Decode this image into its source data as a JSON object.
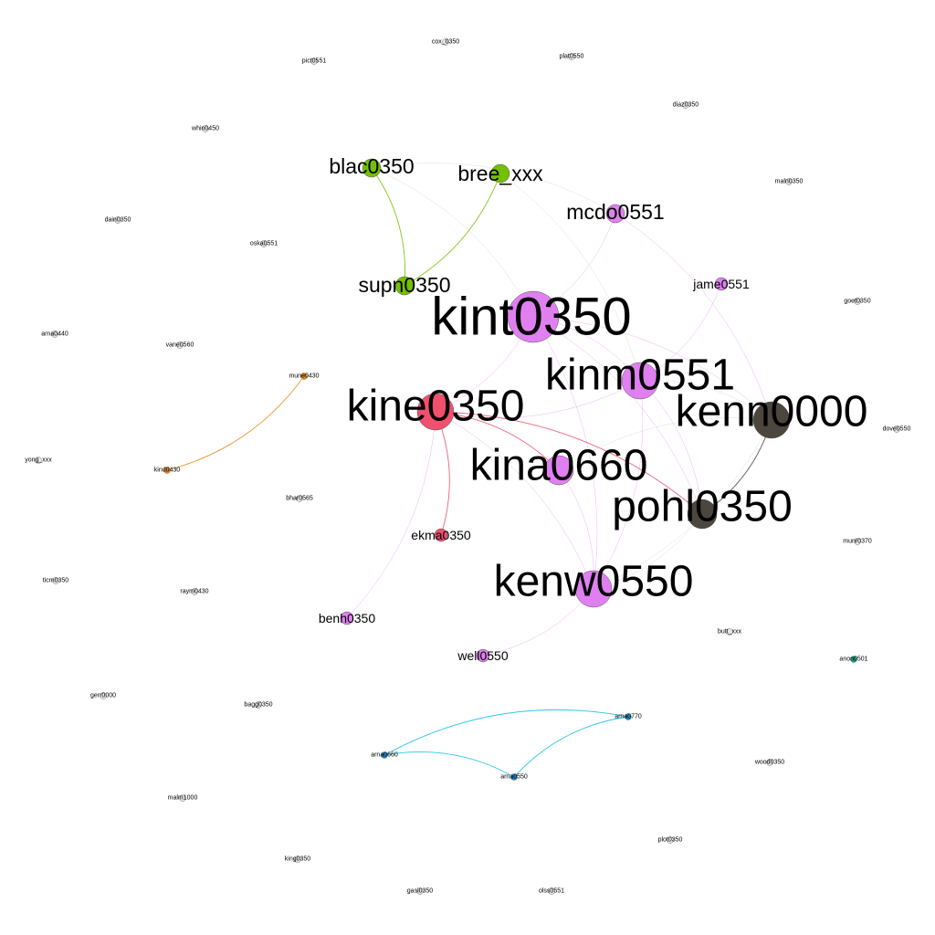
{
  "colors": {
    "pink": "#E080F0",
    "red": "#F0506E",
    "green": "#73C000",
    "dark": "#4B463E",
    "orange": "#E88A1A",
    "cyan": "#1AC0E8",
    "blue": "#1E88C8",
    "teal": "#10A080",
    "gray": "#E6E6E6",
    "edge_gray": "#C8C8C8"
  },
  "nodes": [
    {
      "id": "kint0350",
      "label": "kint0350",
      "color": "pink",
      "size": "xl"
    },
    {
      "id": "kinm0551",
      "label": "kinm0551",
      "color": "pink",
      "size": "l"
    },
    {
      "id": "kenn0000",
      "label": "kenn0000",
      "color": "dark",
      "size": "l"
    },
    {
      "id": "kine0350",
      "label": "kine0350",
      "color": "red",
      "size": "l"
    },
    {
      "id": "kina0660",
      "label": "kina0660",
      "color": "pink",
      "size": "m"
    },
    {
      "id": "pohl0350",
      "label": "pohl0350",
      "color": "dark",
      "size": "m"
    },
    {
      "id": "kenw0550",
      "label": "kenw0550",
      "color": "pink",
      "size": "l"
    },
    {
      "id": "mcdo0551",
      "label": "mcdo0551",
      "color": "pink",
      "size": "s"
    },
    {
      "id": "blac0350",
      "label": "blac0350",
      "color": "green",
      "size": "s"
    },
    {
      "id": "bree_xxx",
      "label": "bree_xxx",
      "color": "green",
      "size": "s"
    },
    {
      "id": "supn0350",
      "label": "supn0350",
      "color": "green",
      "size": "s"
    },
    {
      "id": "jame0551",
      "label": "jame0551",
      "color": "pink",
      "size": "xs"
    },
    {
      "id": "ekma0350",
      "label": "ekma0350",
      "color": "red",
      "size": "xs"
    },
    {
      "id": "benh0350",
      "label": "benh0350",
      "color": "pink",
      "size": "xs"
    },
    {
      "id": "well0550",
      "label": "well0550",
      "color": "pink",
      "size": "xs"
    },
    {
      "id": "mune0430",
      "label": "mune0430",
      "color": "orange",
      "size": "xxs"
    },
    {
      "id": "kind0430",
      "label": "kind0430",
      "color": "orange",
      "size": "xxs"
    },
    {
      "id": "arna0770",
      "label": "arna0770",
      "color": "blue",
      "size": "xxs"
    },
    {
      "id": "arna0660",
      "label": "arna0660",
      "color": "blue",
      "size": "xxs"
    },
    {
      "id": "arna0550",
      "label": "arna0550",
      "color": "blue",
      "size": "xxs"
    },
    {
      "id": "anon0501",
      "label": "anon0501",
      "color": "teal",
      "size": "xxs"
    },
    {
      "id": "cox_0350",
      "label": "cox_0350",
      "color": "gray",
      "size": "xxs"
    },
    {
      "id": "plat0550",
      "label": "plat0550",
      "color": "gray",
      "size": "xxs"
    },
    {
      "id": "pict0551",
      "label": "pict0551",
      "color": "gray",
      "size": "xxs"
    },
    {
      "id": "diaz0350",
      "label": "diaz0350",
      "color": "gray",
      "size": "xxs"
    },
    {
      "id": "whin0450",
      "label": "whin0450",
      "color": "gray",
      "size": "xxs"
    },
    {
      "id": "maln0350",
      "label": "maln0350",
      "color": "gray",
      "size": "xxs"
    },
    {
      "id": "dain0350",
      "label": "dain0350",
      "color": "gray",
      "size": "xxs"
    },
    {
      "id": "oska0551",
      "label": "oska0551",
      "color": "gray",
      "size": "xxs"
    },
    {
      "id": "goet0350",
      "label": "goet0350",
      "color": "gray",
      "size": "xxs"
    },
    {
      "id": "arna0440",
      "label": "arna0440",
      "color": "gray",
      "size": "xxs"
    },
    {
      "id": "vane0560",
      "label": "vane0560",
      "color": "gray",
      "size": "xxs"
    },
    {
      "id": "dove0550",
      "label": "dove0550",
      "color": "gray",
      "size": "xxs"
    },
    {
      "id": "yong_xxx",
      "label": "yong_xxx",
      "color": "gray",
      "size": "xxs"
    },
    {
      "id": "bhar0565",
      "label": "bhar0565",
      "color": "gray",
      "size": "xxs"
    },
    {
      "id": "munr0370",
      "label": "munr0370",
      "color": "gray",
      "size": "xxs"
    },
    {
      "id": "ticm0350",
      "label": "ticm0350",
      "color": "gray",
      "size": "xxs"
    },
    {
      "id": "raym0430",
      "label": "raym0430",
      "color": "gray",
      "size": "xxs"
    },
    {
      "id": "butt_xxx",
      "label": "butt_xxx",
      "color": "gray",
      "size": "xxs"
    },
    {
      "id": "gerr0000",
      "label": "gerr0000",
      "color": "gray",
      "size": "xxs"
    },
    {
      "id": "bagg0350",
      "label": "bagg0350",
      "color": "gray",
      "size": "xxs"
    },
    {
      "id": "wood0350",
      "label": "wood0350",
      "color": "gray",
      "size": "xxs"
    },
    {
      "id": "malm1000",
      "label": "malm1000",
      "color": "gray",
      "size": "xxs"
    },
    {
      "id": "plot0350",
      "label": "plot0350",
      "color": "gray",
      "size": "xxs"
    },
    {
      "id": "king0350",
      "label": "king0350",
      "color": "gray",
      "size": "xxs"
    },
    {
      "id": "gasi0350",
      "label": "gasi0350",
      "color": "gray",
      "size": "xxs"
    },
    {
      "id": "olss0551",
      "label": "olss0551",
      "color": "gray",
      "size": "xxs"
    }
  ],
  "edges": [
    {
      "source": "blac0350",
      "target": "supn0350",
      "color": "green"
    },
    {
      "source": "bree_xxx",
      "target": "supn0350",
      "color": "green"
    },
    {
      "source": "blac0350",
      "target": "kint0350",
      "color": "edge_gray"
    },
    {
      "source": "blac0350",
      "target": "mcdo0551",
      "color": "edge_gray"
    },
    {
      "source": "bree_xxx",
      "target": "kinm0551",
      "color": "edge_gray"
    },
    {
      "source": "mcdo0551",
      "target": "kint0350",
      "color": "pink"
    },
    {
      "source": "mcdo0551",
      "target": "kenn0000",
      "color": "pink"
    },
    {
      "source": "jame0551",
      "target": "kinm0551",
      "color": "pink"
    },
    {
      "source": "kint0350",
      "target": "kine0350",
      "color": "pink"
    },
    {
      "source": "kint0350",
      "target": "kinm0551",
      "color": "pink"
    },
    {
      "source": "kint0350",
      "target": "kenn0000",
      "color": "pink"
    },
    {
      "source": "kint0350",
      "target": "pohl0350",
      "color": "pink"
    },
    {
      "source": "kint0350",
      "target": "kenw0550",
      "color": "pink"
    },
    {
      "source": "kinm0551",
      "target": "kine0350",
      "color": "pink"
    },
    {
      "source": "kinm0551",
      "target": "kenn0000",
      "color": "edge_gray"
    },
    {
      "source": "kinm0551",
      "target": "pohl0350",
      "color": "pink"
    },
    {
      "source": "kinm0551",
      "target": "kenw0550",
      "color": "pink"
    },
    {
      "source": "kine0350",
      "target": "kina0660",
      "color": "red"
    },
    {
      "source": "kine0350",
      "target": "ekma0350",
      "color": "red"
    },
    {
      "source": "kine0350",
      "target": "benh0350",
      "color": "pink"
    },
    {
      "source": "kine0350",
      "target": "pohl0350",
      "color": "red"
    },
    {
      "source": "kine0350",
      "target": "kenw0550",
      "color": "pink"
    },
    {
      "source": "kina0660",
      "target": "kenn0000",
      "color": "edge_gray"
    },
    {
      "source": "kina0660",
      "target": "kenw0550",
      "color": "pink"
    },
    {
      "source": "kenn0000",
      "target": "pohl0350",
      "color": "dark"
    },
    {
      "source": "kenn0000",
      "target": "kenw0550",
      "color": "edge_gray"
    },
    {
      "source": "pohl0350",
      "target": "kenw0550",
      "color": "edge_gray"
    },
    {
      "source": "kenw0550",
      "target": "well0550",
      "color": "pink"
    },
    {
      "source": "mune0430",
      "target": "kind0430",
      "color": "orange"
    },
    {
      "source": "arna0660",
      "target": "arna0770",
      "color": "cyan"
    },
    {
      "source": "arna0660",
      "target": "arna0550",
      "color": "cyan"
    },
    {
      "source": "arna0550",
      "target": "arna0770",
      "color": "cyan"
    }
  ]
}
